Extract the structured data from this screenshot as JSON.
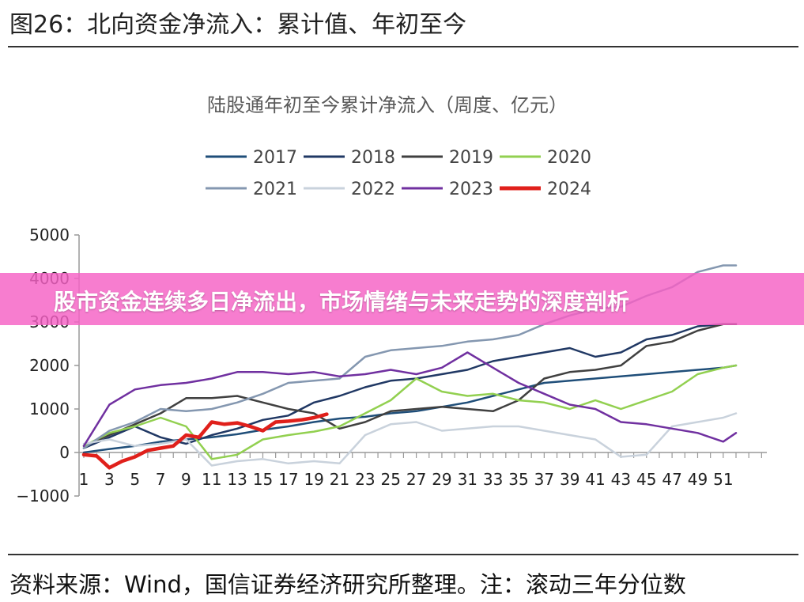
{
  "figure_title": "图26：北向资金净流入：累计值、年初至今",
  "source_note": "资料来源：Wind，国信证券经济研究所整理。注：滚动三年分位数",
  "banner_text": "股市资金连续多日净流出，市场情绪与未来走势的深度剖析",
  "chart_data": {
    "type": "line",
    "title": "陆股通年初至今累计净流入（周度、亿元）",
    "xlabel": "",
    "ylabel": "",
    "xlim": [
      1,
      52
    ],
    "ylim": [
      -1000,
      5000
    ],
    "yticks": [
      -1000,
      0,
      1000,
      2000,
      3000,
      4000,
      5000
    ],
    "xticks": [
      1,
      3,
      5,
      7,
      9,
      11,
      13,
      15,
      17,
      19,
      21,
      23,
      25,
      27,
      29,
      31,
      33,
      35,
      37,
      39,
      41,
      43,
      45,
      47,
      49,
      51
    ],
    "grid": false,
    "legend": "top",
    "series": [
      {
        "name": "2017",
        "color": "#1f4e79",
        "x": [
          1,
          3,
          5,
          7,
          9,
          11,
          13,
          15,
          17,
          19,
          21,
          23,
          25,
          27,
          29,
          31,
          33,
          35,
          37,
          39,
          41,
          43,
          45,
          47,
          49,
          51,
          52
        ],
        "values": [
          0,
          80,
          150,
          250,
          300,
          350,
          420,
          520,
          600,
          700,
          780,
          820,
          900,
          950,
          1050,
          1150,
          1300,
          1450,
          1600,
          1650,
          1700,
          1750,
          1800,
          1850,
          1900,
          1950,
          2000
        ]
      },
      {
        "name": "2018",
        "color": "#203864",
        "x": [
          1,
          3,
          5,
          7,
          9,
          11,
          13,
          15,
          17,
          19,
          21,
          23,
          25,
          27,
          29,
          31,
          33,
          35,
          37,
          39,
          41,
          43,
          45,
          47,
          49,
          51,
          52
        ],
        "values": [
          100,
          350,
          600,
          350,
          200,
          400,
          550,
          750,
          850,
          1150,
          1300,
          1500,
          1650,
          1700,
          1800,
          1900,
          2100,
          2200,
          2300,
          2400,
          2200,
          2300,
          2600,
          2700,
          2900,
          2950,
          2950
        ]
      },
      {
        "name": "2019",
        "color": "#404040",
        "x": [
          1,
          3,
          5,
          7,
          9,
          11,
          13,
          15,
          17,
          19,
          21,
          23,
          25,
          27,
          29,
          31,
          33,
          35,
          37,
          39,
          41,
          43,
          45,
          47,
          49,
          51,
          52
        ],
        "values": [
          150,
          400,
          650,
          900,
          1250,
          1250,
          1300,
          1150,
          1000,
          900,
          550,
          700,
          950,
          1000,
          1050,
          1000,
          950,
          1200,
          1700,
          1850,
          1900,
          2000,
          2450,
          2550,
          2800,
          2950,
          2950
        ]
      },
      {
        "name": "2020",
        "color": "#92d050",
        "x": [
          1,
          3,
          5,
          7,
          9,
          11,
          13,
          15,
          17,
          19,
          21,
          23,
          25,
          27,
          29,
          31,
          33,
          35,
          37,
          39,
          41,
          43,
          45,
          47,
          49,
          51,
          52
        ],
        "values": [
          150,
          450,
          600,
          800,
          600,
          -150,
          -50,
          300,
          400,
          480,
          600,
          900,
          1200,
          1700,
          1400,
          1300,
          1350,
          1200,
          1150,
          1000,
          1200,
          1000,
          1200,
          1400,
          1800,
          1950,
          2000
        ]
      },
      {
        "name": "2021",
        "color": "#8497b0",
        "x": [
          1,
          3,
          5,
          7,
          9,
          11,
          13,
          15,
          17,
          19,
          21,
          23,
          25,
          27,
          29,
          31,
          33,
          35,
          37,
          39,
          41,
          43,
          45,
          47,
          49,
          51,
          52
        ],
        "values": [
          100,
          500,
          700,
          1000,
          950,
          1000,
          1150,
          1350,
          1600,
          1650,
          1700,
          2200,
          2350,
          2400,
          2450,
          2550,
          2600,
          2700,
          2950,
          3150,
          3300,
          3350,
          3600,
          3800,
          4150,
          4300,
          4300
        ]
      },
      {
        "name": "2022",
        "color": "#c9d2dc",
        "x": [
          1,
          3,
          5,
          7,
          9,
          11,
          13,
          15,
          17,
          19,
          21,
          23,
          25,
          27,
          29,
          31,
          33,
          35,
          37,
          39,
          41,
          43,
          45,
          47,
          49,
          51,
          52
        ],
        "values": [
          200,
          300,
          150,
          200,
          300,
          -300,
          -200,
          -150,
          -250,
          -200,
          -250,
          400,
          650,
          700,
          500,
          550,
          600,
          600,
          500,
          400,
          300,
          -100,
          -50,
          600,
          700,
          800,
          900
        ]
      },
      {
        "name": "2023",
        "color": "#7030a0",
        "x": [
          1,
          3,
          5,
          7,
          9,
          11,
          13,
          15,
          17,
          19,
          21,
          23,
          25,
          27,
          29,
          31,
          33,
          35,
          37,
          39,
          41,
          43,
          45,
          47,
          49,
          51,
          52
        ],
        "values": [
          150,
          1100,
          1450,
          1550,
          1600,
          1700,
          1850,
          1850,
          1800,
          1850,
          1750,
          1800,
          1900,
          1800,
          1950,
          2300,
          1950,
          1600,
          1350,
          1100,
          1000,
          700,
          650,
          550,
          450,
          250,
          450
        ]
      },
      {
        "name": "2024",
        "color": "#e0201b",
        "x": [
          1,
          2,
          3,
          4,
          5,
          6,
          7,
          8,
          9,
          10,
          11,
          12,
          13,
          14,
          15,
          16,
          17,
          18,
          19,
          20
        ],
        "values": [
          -50,
          -80,
          -350,
          -200,
          -100,
          50,
          100,
          150,
          400,
          350,
          700,
          650,
          680,
          600,
          500,
          700,
          720,
          750,
          800,
          880
        ]
      }
    ]
  }
}
